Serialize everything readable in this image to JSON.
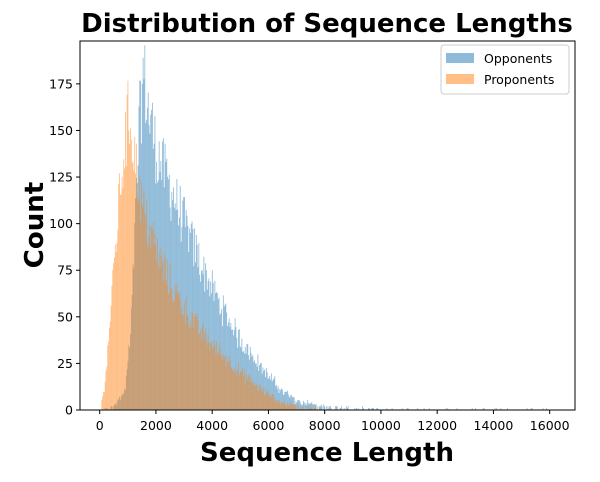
{
  "chart_data": {
    "type": "histogram",
    "title": "Distribution of Sequence Lengths",
    "xlabel": "Sequence Length",
    "ylabel": "Count",
    "xlim": [
      -700,
      16900
    ],
    "ylim": [
      0,
      198
    ],
    "xticks": [
      0,
      2000,
      4000,
      6000,
      8000,
      10000,
      12000,
      14000,
      16000
    ],
    "yticks": [
      0,
      25,
      50,
      75,
      100,
      125,
      150,
      175
    ],
    "bin_width": 30,
    "grid": false,
    "legend_position": "top-right",
    "series": [
      {
        "name": "Opponents",
        "color": "#1f77b4",
        "alpha": 0.5,
        "peak_x": 1550,
        "peak_count": 180,
        "profile": [
          [
            0,
            0
          ],
          [
            500,
            2
          ],
          [
            900,
            10
          ],
          [
            1100,
            40
          ],
          [
            1250,
            95
          ],
          [
            1400,
            150
          ],
          [
            1550,
            180
          ],
          [
            1750,
            160
          ],
          [
            2000,
            140
          ],
          [
            2500,
            120
          ],
          [
            3000,
            100
          ],
          [
            3500,
            82
          ],
          [
            4000,
            65
          ],
          [
            4500,
            50
          ],
          [
            5000,
            38
          ],
          [
            5500,
            28
          ],
          [
            6000,
            18
          ],
          [
            6500,
            10
          ],
          [
            7000,
            5
          ],
          [
            7500,
            3
          ],
          [
            8000,
            1.5
          ],
          [
            9000,
            0.7
          ],
          [
            10000,
            0.4
          ],
          [
            12000,
            0.2
          ],
          [
            16200,
            0
          ]
        ]
      },
      {
        "name": "Proponents",
        "color": "#ff7f0e",
        "alpha": 0.5,
        "peak_x": 1050,
        "peak_count": 158,
        "profile": [
          [
            0,
            0
          ],
          [
            100,
            5
          ],
          [
            250,
            25
          ],
          [
            400,
            55
          ],
          [
            600,
            95
          ],
          [
            800,
            130
          ],
          [
            950,
            150
          ],
          [
            1050,
            158
          ],
          [
            1150,
            150
          ],
          [
            1300,
            130
          ],
          [
            1500,
            110
          ],
          [
            1800,
            95
          ],
          [
            2100,
            82
          ],
          [
            2500,
            68
          ],
          [
            3000,
            55
          ],
          [
            3500,
            44
          ],
          [
            4000,
            35
          ],
          [
            4500,
            28
          ],
          [
            5000,
            20
          ],
          [
            5500,
            14
          ],
          [
            6000,
            8
          ],
          [
            6500,
            4
          ],
          [
            7000,
            2
          ],
          [
            7500,
            1
          ],
          [
            8000,
            0.4
          ],
          [
            9000,
            0
          ],
          [
            16200,
            0
          ]
        ]
      }
    ]
  }
}
